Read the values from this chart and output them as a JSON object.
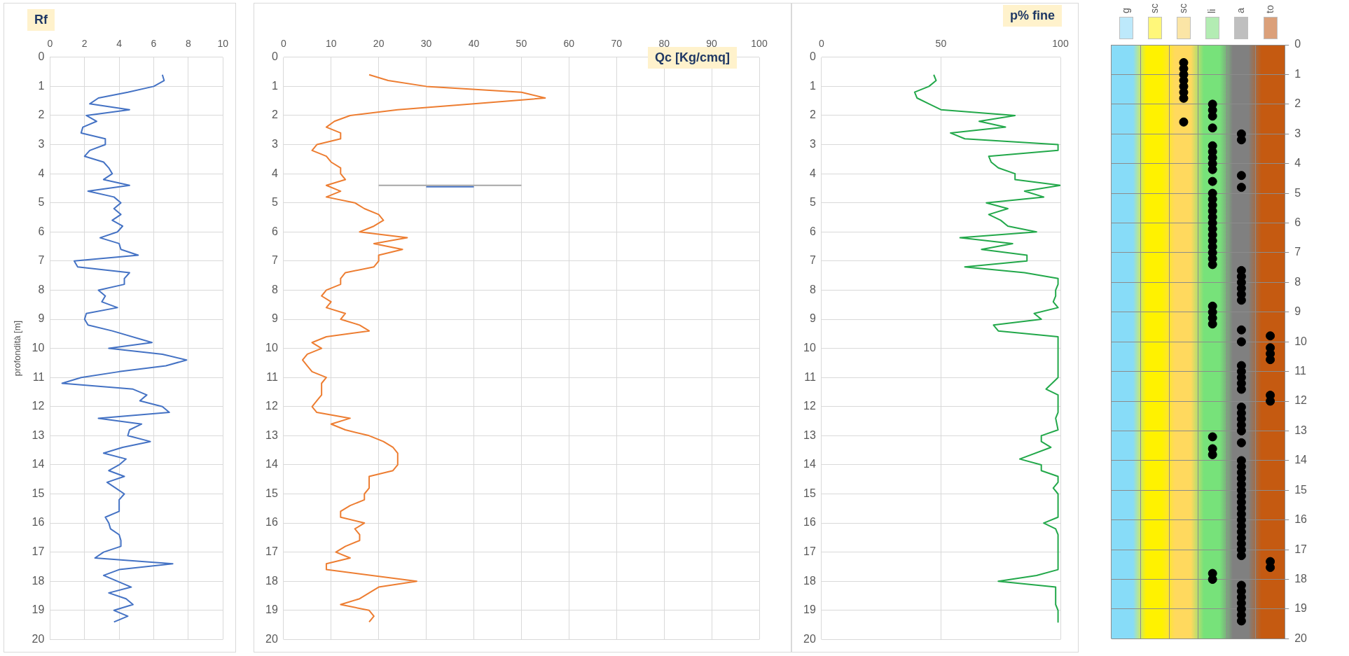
{
  "chart_data": [
    {
      "type": "line",
      "title": "Rf",
      "ylabel": "profondità [m]",
      "xlim": [
        0,
        10
      ],
      "xticks": [
        0,
        2,
        4,
        6,
        8,
        10
      ],
      "ylim": [
        20,
        0
      ],
      "yticks": [
        0,
        1,
        2,
        3,
        4,
        5,
        6,
        7,
        8,
        9,
        10,
        11,
        12,
        13,
        14,
        15,
        16,
        17,
        18,
        19,
        20
      ],
      "grid": true,
      "series": [
        {
          "color": "#4472c4",
          "x": [
            6.5,
            6.6,
            6.0,
            4.5,
            2.8,
            2.3,
            4.6,
            2.1,
            2.7,
            1.9,
            1.8,
            3.2,
            3.2,
            2.3,
            2.0,
            3.1,
            3.4,
            3.6,
            3.1,
            4.6,
            2.2,
            3.7,
            4.1,
            3.7,
            4.1,
            3.6,
            4.2,
            3.9,
            2.9,
            4.0,
            4.1,
            5.1,
            1.4,
            1.6,
            4.6,
            4.3,
            4.3,
            2.8,
            3.2,
            3.0,
            3.9,
            2.1,
            2.0,
            2.2,
            3.6,
            5.9,
            3.4,
            6.5,
            7.9,
            6.7,
            4.0,
            1.8,
            0.7,
            4.8,
            5.6,
            5.2,
            6.5,
            6.9,
            2.8,
            5.3,
            4.6,
            4.5,
            5.8,
            4.2,
            3.1,
            4.4,
            4.0,
            3.4,
            4.3,
            3.3,
            3.8,
            4.3,
            4.0,
            4.0,
            3.2,
            3.4,
            3.5,
            4.0,
            4.1,
            4.1,
            3.1,
            2.6,
            7.1,
            4.0,
            3.1,
            4.7,
            3.4,
            4.4,
            4.8,
            3.7,
            4.5,
            3.7
          ],
          "values": [
            0.6,
            0.8,
            1.0,
            1.2,
            1.4,
            1.6,
            1.8,
            2.0,
            2.2,
            2.4,
            2.6,
            2.8,
            3.0,
            3.2,
            3.4,
            3.6,
            3.8,
            4.0,
            4.2,
            4.4,
            4.6,
            4.8,
            5.0,
            5.2,
            5.4,
            5.6,
            5.8,
            6.0,
            6.2,
            6.4,
            6.6,
            6.8,
            7.0,
            7.2,
            7.4,
            7.6,
            7.8,
            8.0,
            8.2,
            8.4,
            8.6,
            8.8,
            9.0,
            9.2,
            9.4,
            9.8,
            10.0,
            10.2,
            10.4,
            10.6,
            10.8,
            11.0,
            11.2,
            11.4,
            11.6,
            11.8,
            12.0,
            12.2,
            12.4,
            12.6,
            12.8,
            13.0,
            13.2,
            13.4,
            13.6,
            13.8,
            14.0,
            14.2,
            14.4,
            14.6,
            14.8,
            15.0,
            15.2,
            15.6,
            15.8,
            16.0,
            16.2,
            16.4,
            16.6,
            16.8,
            17.0,
            17.2,
            17.4,
            17.6,
            17.8,
            18.2,
            18.4,
            18.6,
            18.8,
            19.0,
            19.2,
            19.4
          ]
        }
      ]
    },
    {
      "type": "line",
      "title": "Qc [Kg/cmq]",
      "xlim": [
        0,
        100
      ],
      "xticks": [
        0,
        10,
        20,
        30,
        40,
        50,
        60,
        70,
        80,
        90,
        100
      ],
      "ylim": [
        20,
        0
      ],
      "yticks": [
        0,
        1,
        2,
        3,
        4,
        5,
        6,
        7,
        8,
        9,
        10,
        11,
        12,
        13,
        14,
        15,
        16,
        17,
        18,
        19,
        20
      ],
      "grid": true,
      "series": [
        {
          "color": "#ed7d31",
          "x": [
            18,
            22,
            30,
            50,
            55,
            40,
            24,
            14,
            10.7,
            9,
            12,
            12,
            7,
            6,
            9,
            10,
            12,
            12,
            13,
            9,
            12,
            9,
            15,
            17,
            20,
            21,
            19,
            16,
            26,
            19,
            25,
            20,
            20,
            19,
            13,
            12,
            12,
            9,
            8,
            10,
            9,
            13,
            12,
            16,
            18,
            9,
            6,
            8,
            5,
            4,
            5,
            6,
            9,
            8,
            8,
            7,
            6,
            7,
            14,
            10,
            13,
            18,
            21,
            23,
            24,
            24,
            23,
            18,
            18,
            17,
            17,
            14,
            12,
            12,
            17,
            15,
            16,
            16,
            13,
            11,
            14,
            9,
            9,
            28,
            20,
            18,
            16,
            12,
            18,
            19,
            18
          ],
          "values": [
            0.6,
            0.8,
            1.0,
            1.2,
            1.4,
            1.6,
            1.8,
            2.0,
            2.2,
            2.4,
            2.6,
            2.8,
            3.0,
            3.2,
            3.4,
            3.6,
            3.8,
            4.0,
            4.2,
            4.4,
            4.6,
            4.8,
            5.0,
            5.2,
            5.4,
            5.6,
            5.8,
            6.0,
            6.2,
            6.4,
            6.6,
            6.8,
            7.0,
            7.2,
            7.4,
            7.6,
            7.8,
            8.0,
            8.2,
            8.4,
            8.6,
            8.8,
            9.0,
            9.2,
            9.4,
            9.6,
            9.8,
            10.0,
            10.2,
            10.4,
            10.6,
            10.8,
            11.0,
            11.2,
            11.6,
            11.8,
            12.0,
            12.2,
            12.4,
            12.6,
            12.8,
            13.0,
            13.2,
            13.4,
            13.6,
            14.0,
            14.2,
            14.4,
            14.8,
            15.0,
            15.2,
            15.4,
            15.6,
            15.8,
            16.0,
            16.2,
            16.4,
            16.6,
            16.8,
            17.0,
            17.2,
            17.4,
            17.6,
            18.0,
            18.2,
            18.4,
            18.6,
            18.8,
            19.0,
            19.2,
            19.4
          ]
        },
        {
          "color": "#a6a6a6",
          "x": [
            20,
            50
          ],
          "values": [
            4.4,
            4.4
          ]
        },
        {
          "color": "#4472c4",
          "x": [
            30,
            40
          ],
          "values": [
            4.45,
            4.45
          ]
        }
      ]
    },
    {
      "type": "line",
      "title": "p% fine",
      "xlim": [
        0,
        100
      ],
      "xticks": [
        0,
        50,
        100
      ],
      "ylim": [
        20,
        0
      ],
      "yticks": [
        0,
        1,
        2,
        3,
        4,
        5,
        6,
        7,
        8,
        9,
        10,
        11,
        12,
        13,
        14,
        15,
        16,
        17,
        18,
        19,
        20
      ],
      "grid": true,
      "series": [
        {
          "color": "#22a84a",
          "x": [
            47,
            48,
            45,
            39,
            40,
            45,
            50,
            81,
            66,
            77,
            54,
            60,
            99,
            99,
            70,
            71,
            74,
            81,
            81,
            100,
            85,
            93,
            69,
            78,
            70,
            75,
            78,
            90,
            58,
            80,
            67,
            86,
            86,
            60,
            85,
            99,
            99,
            98,
            98,
            97,
            99,
            89,
            92,
            72,
            74,
            99,
            99,
            94,
            99,
            99,
            98,
            99,
            92,
            92,
            96,
            83,
            92,
            92,
            99,
            99,
            97,
            99,
            99,
            93,
            98,
            99,
            99,
            90,
            74,
            98,
            98,
            99,
            99
          ],
          "values": [
            0.6,
            0.8,
            1.0,
            1.2,
            1.4,
            1.6,
            1.8,
            2.0,
            2.2,
            2.4,
            2.6,
            2.8,
            3.0,
            3.2,
            3.4,
            3.6,
            3.8,
            4.0,
            4.2,
            4.4,
            4.6,
            4.8,
            5.0,
            5.2,
            5.4,
            5.6,
            5.8,
            6.0,
            6.2,
            6.4,
            6.6,
            6.8,
            7.0,
            7.2,
            7.4,
            7.6,
            7.8,
            8.0,
            8.2,
            8.4,
            8.6,
            8.8,
            9.0,
            9.2,
            9.4,
            9.6,
            11.0,
            11.4,
            11.6,
            12.2,
            12.4,
            12.8,
            13.0,
            13.2,
            13.4,
            13.8,
            14.0,
            14.2,
            14.4,
            14.6,
            14.8,
            15.0,
            15.8,
            16.0,
            16.2,
            16.4,
            17.6,
            17.8,
            18.0,
            18.2,
            18.8,
            19.0,
            19.4
          ]
        }
      ]
    },
    {
      "type": "scatter",
      "categories": [
        "g",
        "sc",
        "sc",
        "li",
        "a",
        "to"
      ],
      "ylim": [
        20,
        0
      ],
      "yticks": [
        0,
        1,
        2,
        3,
        4,
        5,
        6,
        7,
        8,
        9,
        10,
        11,
        12,
        13,
        14,
        15,
        16,
        17,
        18,
        19,
        20
      ],
      "grid": true,
      "marker": "circle",
      "series": [
        {
          "color": "#000000",
          "values": [
            null,
            null,
            0.6,
            2.0,
            3.0,
            9.8
          ]
        },
        {
          "color": "#000000",
          "values": [
            null,
            null,
            0.8,
            2.2,
            3.2,
            10.2
          ]
        },
        {
          "color": "#000000",
          "values": [
            null,
            null,
            1.0,
            2.4,
            4.4,
            10.4
          ]
        },
        {
          "color": "#000000",
          "values": [
            null,
            null,
            1.2,
            2.8,
            4.8,
            10.6
          ]
        },
        {
          "color": "#000000",
          "values": [
            null,
            null,
            1.4,
            3.4,
            7.6,
            11.8
          ]
        },
        {
          "color": "#000000",
          "values": [
            null,
            null,
            1.6,
            3.6,
            7.8,
            12.0
          ]
        },
        {
          "color": "#000000",
          "values": [
            null,
            null,
            1.8,
            3.8,
            8.0,
            17.4
          ]
        },
        {
          "color": "#000000",
          "values": [
            null,
            null,
            2.6,
            4.0,
            8.2,
            17.6
          ]
        },
        {
          "color": "#000000",
          "values": [
            null,
            null,
            null,
            4.2,
            8.4,
            null
          ]
        },
        {
          "color": "#000000",
          "values": [
            null,
            null,
            null,
            4.6,
            8.6,
            null
          ]
        },
        {
          "color": "#000000",
          "values": [
            null,
            null,
            null,
            5.0,
            9.6,
            null
          ]
        },
        {
          "color": "#000000",
          "values": [
            null,
            null,
            null,
            5.2,
            10.0,
            null
          ]
        },
        {
          "color": "#000000",
          "values": [
            null,
            null,
            null,
            5.4,
            10.8,
            null
          ]
        },
        {
          "color": "#000000",
          "values": [
            null,
            null,
            null,
            5.6,
            11.0,
            null
          ]
        },
        {
          "color": "#000000",
          "values": [
            null,
            null,
            null,
            5.8,
            11.2,
            null
          ]
        },
        {
          "color": "#000000",
          "values": [
            null,
            null,
            null,
            6.0,
            11.4,
            null
          ]
        },
        {
          "color": "#000000",
          "values": [
            null,
            null,
            null,
            6.2,
            11.6,
            null
          ]
        },
        {
          "color": "#000000",
          "values": [
            null,
            null,
            null,
            6.4,
            12.2,
            null
          ]
        },
        {
          "color": "#000000",
          "values": [
            null,
            null,
            null,
            6.6,
            12.4,
            null
          ]
        },
        {
          "color": "#000000",
          "values": [
            null,
            null,
            null,
            6.8,
            12.6,
            null
          ]
        },
        {
          "color": "#000000",
          "values": [
            null,
            null,
            null,
            7.0,
            12.8,
            null
          ]
        },
        {
          "color": "#000000",
          "values": [
            null,
            null,
            null,
            7.2,
            13.0,
            null
          ]
        },
        {
          "color": "#000000",
          "values": [
            null,
            null,
            null,
            7.4,
            13.4,
            null
          ]
        },
        {
          "color": "#000000",
          "values": [
            null,
            null,
            null,
            8.8,
            14.0,
            null
          ]
        },
        {
          "color": "#000000",
          "values": [
            null,
            null,
            null,
            9.0,
            14.2,
            null
          ]
        },
        {
          "color": "#000000",
          "values": [
            null,
            null,
            null,
            9.2,
            14.4,
            null
          ]
        },
        {
          "color": "#000000",
          "values": [
            null,
            null,
            null,
            9.4,
            14.6,
            null
          ]
        },
        {
          "color": "#000000",
          "values": [
            null,
            null,
            null,
            13.2,
            14.8,
            null
          ]
        },
        {
          "color": "#000000",
          "values": [
            null,
            null,
            null,
            13.6,
            15.0,
            null
          ]
        },
        {
          "color": "#000000",
          "values": [
            null,
            null,
            null,
            13.8,
            15.2,
            null
          ]
        },
        {
          "color": "#000000",
          "values": [
            null,
            null,
            null,
            17.8,
            15.4,
            null
          ]
        },
        {
          "color": "#000000",
          "values": [
            null,
            null,
            null,
            18.0,
            15.6,
            null
          ]
        },
        {
          "color": "#000000",
          "values": [
            null,
            null,
            null,
            null,
            15.8,
            null
          ]
        },
        {
          "color": "#000000",
          "values": [
            null,
            null,
            null,
            null,
            16.0,
            null
          ]
        },
        {
          "color": "#000000",
          "values": [
            null,
            null,
            null,
            null,
            16.2,
            null
          ]
        },
        {
          "color": "#000000",
          "values": [
            null,
            null,
            null,
            null,
            16.4,
            null
          ]
        },
        {
          "color": "#000000",
          "values": [
            null,
            null,
            null,
            null,
            16.6,
            null
          ]
        },
        {
          "color": "#000000",
          "values": [
            null,
            null,
            null,
            null,
            16.8,
            null
          ]
        },
        {
          "color": "#000000",
          "values": [
            null,
            null,
            null,
            null,
            17.0,
            null
          ]
        },
        {
          "color": "#000000",
          "values": [
            null,
            null,
            null,
            null,
            17.2,
            null
          ]
        },
        {
          "color": "#000000",
          "values": [
            null,
            null,
            null,
            null,
            18.2,
            null
          ]
        },
        {
          "color": "#000000",
          "values": [
            null,
            null,
            null,
            null,
            18.4,
            null
          ]
        },
        {
          "color": "#000000",
          "values": [
            null,
            null,
            null,
            null,
            18.6,
            null
          ]
        },
        {
          "color": "#000000",
          "values": [
            null,
            null,
            null,
            null,
            18.8,
            null
          ]
        },
        {
          "color": "#000000",
          "values": [
            null,
            null,
            null,
            null,
            19.0,
            null
          ]
        },
        {
          "color": "#000000",
          "values": [
            null,
            null,
            null,
            null,
            19.2,
            null
          ]
        },
        {
          "color": "#000000",
          "values": [
            null,
            null,
            null,
            null,
            19.4,
            null
          ]
        }
      ]
    }
  ]
}
